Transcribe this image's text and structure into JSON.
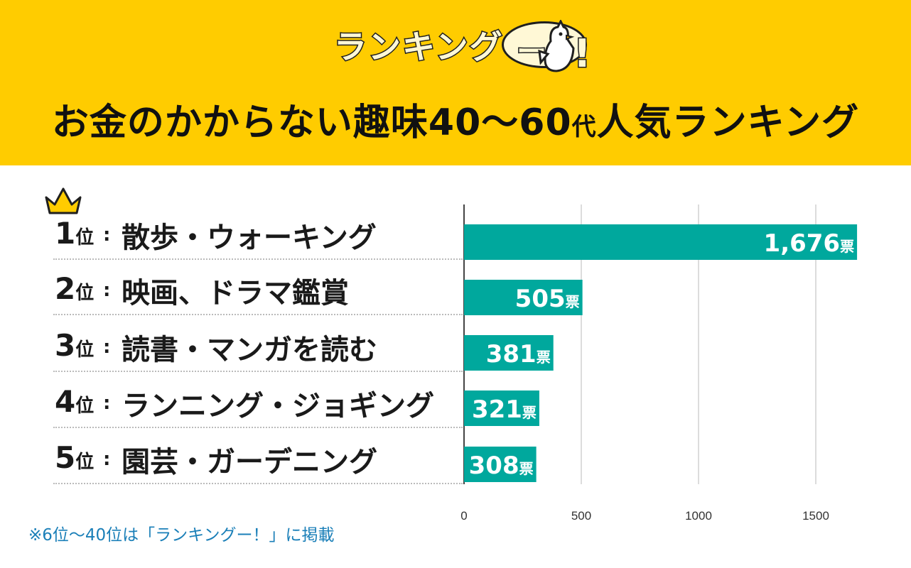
{
  "logo": {
    "text": "ランキング",
    "bubble_text": "ー",
    "exclaim": "!"
  },
  "title": {
    "main_before": "お金のかからない趣味40〜60",
    "small": "代",
    "main_after": "人気ランキング"
  },
  "ranks": [
    {
      "num": "1",
      "suffix": "位",
      "colon": ":",
      "label": "散歩・ウォーキング"
    },
    {
      "num": "2",
      "suffix": "位",
      "colon": ":",
      "label": "映画、ドラマ鑑賞"
    },
    {
      "num": "3",
      "suffix": "位",
      "colon": ":",
      "label": "読書・マンガを読む"
    },
    {
      "num": "4",
      "suffix": "位",
      "colon": ":",
      "label": "ランニング・ジョギング"
    },
    {
      "num": "5",
      "suffix": "位",
      "colon": ":",
      "label": "園芸・ガーデニング"
    }
  ],
  "footnote": "※6位〜40位は「ランキングー！」に掲載",
  "colors": {
    "header": "#ffcc00",
    "bar": "#00a89d",
    "crown": "#ffcc00",
    "footnote": "#1a7fb8"
  },
  "chart_data": {
    "type": "bar",
    "orientation": "horizontal",
    "title": "お金のかからない趣味40〜60代人気ランキング",
    "categories": [
      "散歩・ウォーキング",
      "映画、ドラマ鑑賞",
      "読書・マンガを読む",
      "ランニング・ジョギング",
      "園芸・ガーデニング"
    ],
    "values": [
      1676,
      505,
      381,
      321,
      308
    ],
    "value_labels": [
      "1,676",
      "505",
      "381",
      "321",
      "308"
    ],
    "unit": "票",
    "xlim": [
      0,
      1650
    ],
    "xticks": [
      0,
      500,
      1000,
      1500
    ],
    "xtick_labels": [
      "0",
      "500",
      "1000",
      "1500"
    ],
    "grid": true,
    "legend": "none"
  }
}
